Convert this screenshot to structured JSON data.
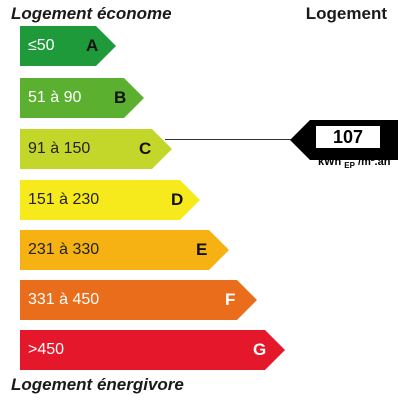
{
  "headings": {
    "top_left": "Logement économe",
    "top_right": "Logement",
    "bottom_left": "Logement énergivore"
  },
  "bands": [
    {
      "range": "≤50",
      "letter": "A",
      "color": "#1f9a3b"
    },
    {
      "range": "51 à 90",
      "letter": "B",
      "color": "#5bb030"
    },
    {
      "range": "91 à 150",
      "letter": "C",
      "color": "#c3d62a"
    },
    {
      "range": "151 à 230",
      "letter": "D",
      "color": "#f6ea1c"
    },
    {
      "range": "231 à 330",
      "letter": "E",
      "color": "#f5b212"
    },
    {
      "range": "331 à 450",
      "letter": "F",
      "color": "#ea6d1b"
    },
    {
      "range": ">450",
      "letter": "G",
      "color": "#e4172b"
    }
  ],
  "indicator": {
    "value": "107",
    "unit_prefix": "kWh",
    "unit_sub": "EP",
    "unit_suffix": "/m².an",
    "band": "C"
  }
}
